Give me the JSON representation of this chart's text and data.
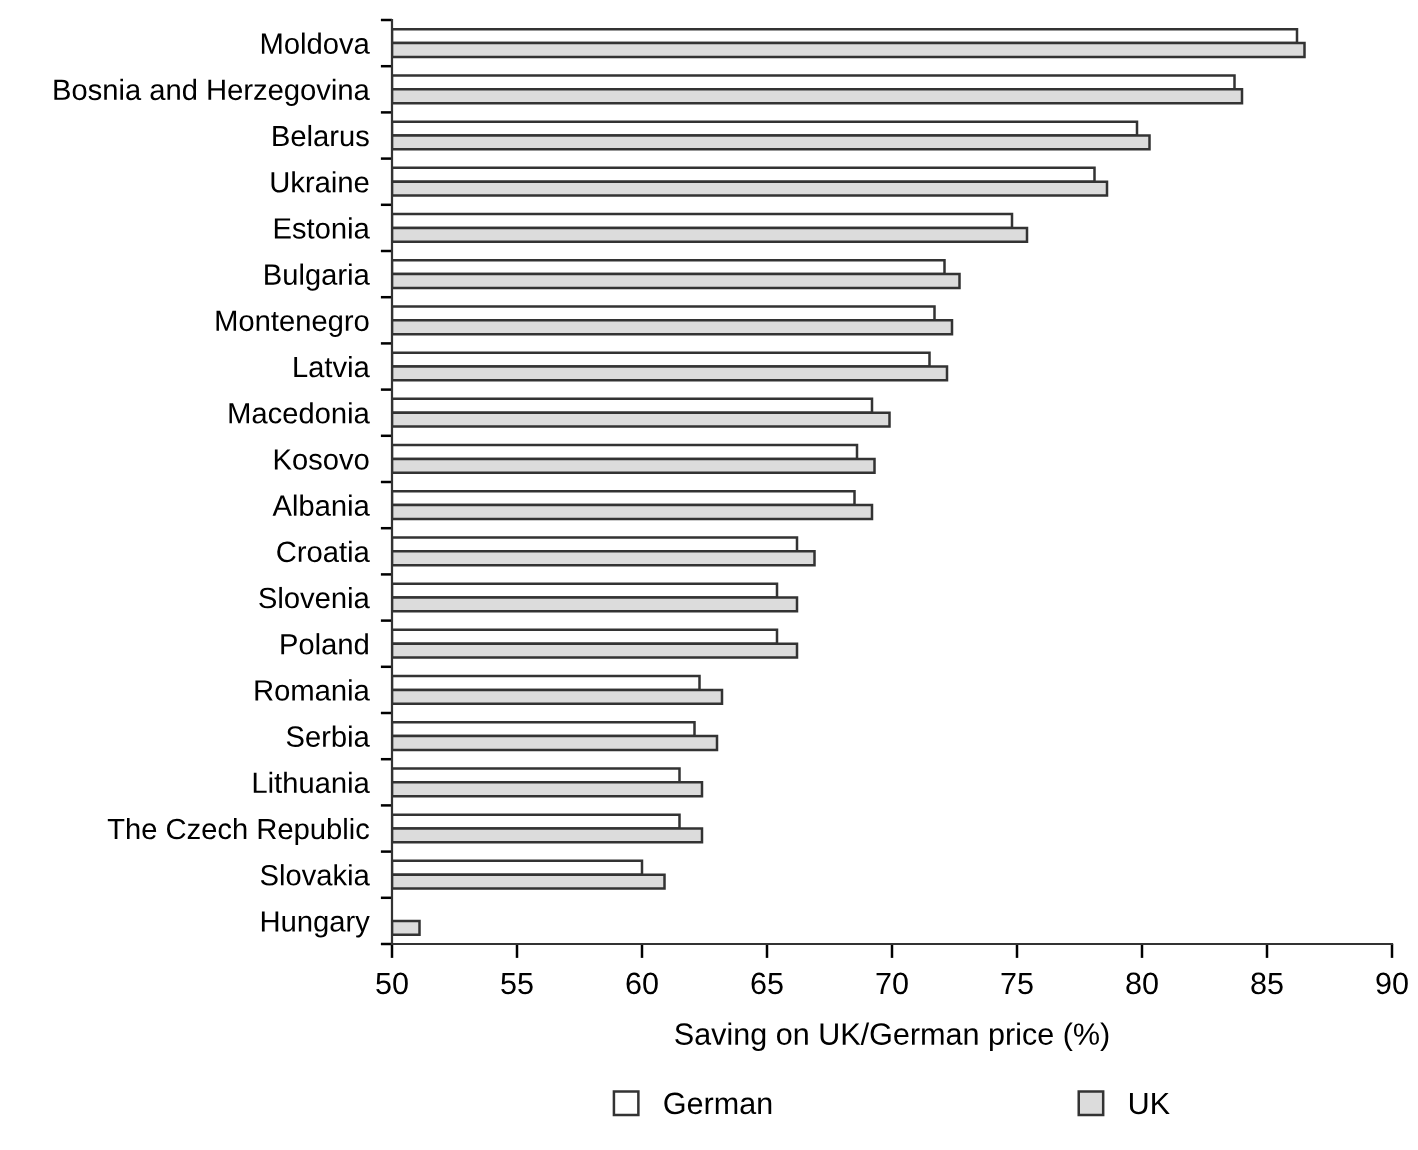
{
  "chart_data": {
    "type": "bar",
    "orientation": "horizontal",
    "xlabel": "Saving on UK/German price (%)",
    "categories": [
      "Moldova",
      "Bosnia and Herzegovina",
      "Belarus",
      "Ukraine",
      "Estonia",
      "Bulgaria",
      "Montenegro",
      "Latvia",
      "Macedonia",
      "Kosovo",
      "Albania",
      "Croatia",
      "Slovenia",
      "Poland",
      "Romania",
      "Serbia",
      "Lithuania",
      "The Czech Republic",
      "Slovakia",
      "Hungary"
    ],
    "series": [
      {
        "name": "German",
        "color": "#ffffff",
        "values": [
          86.2,
          83.7,
          79.8,
          78.1,
          74.8,
          72.1,
          71.7,
          71.5,
          69.2,
          68.6,
          68.5,
          66.2,
          65.4,
          65.4,
          62.3,
          62.1,
          61.5,
          61.5,
          60.0,
          null
        ]
      },
      {
        "name": "UK",
        "color": "#dcdcdc",
        "values": [
          86.5,
          84.0,
          80.3,
          78.6,
          75.4,
          72.7,
          72.4,
          72.2,
          69.9,
          69.3,
          69.2,
          66.9,
          66.2,
          66.2,
          63.2,
          63.0,
          62.4,
          62.4,
          60.9,
          51.1
        ]
      }
    ],
    "xlim": [
      50,
      90
    ],
    "xticks": [
      50,
      55,
      60,
      65,
      70,
      75,
      80,
      85,
      90
    ],
    "grid": false,
    "legend": "bottom"
  }
}
